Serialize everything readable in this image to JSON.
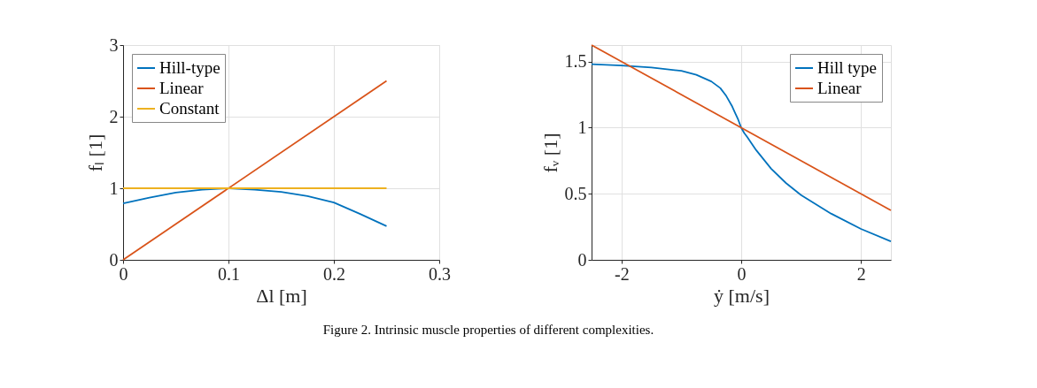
{
  "chart_data": [
    {
      "type": "line",
      "xlabel": "Δl [m]",
      "ylabel": "fₗ [1]",
      "xlim": [
        0,
        0.3
      ],
      "ylim": [
        0,
        3
      ],
      "xticks": [
        0,
        0.1,
        0.2,
        0.3
      ],
      "yticks": [
        0,
        1,
        2,
        3
      ],
      "grid": true,
      "legend": "top left",
      "line_style": "solid",
      "series": [
        {
          "name": "Hill-type",
          "color": "#0072bd",
          "x": [
            0,
            0.025,
            0.05,
            0.075,
            0.1,
            0.125,
            0.15,
            0.175,
            0.2,
            0.225,
            0.25
          ],
          "values": [
            0.79,
            0.87,
            0.94,
            0.98,
            1.0,
            0.98,
            0.95,
            0.89,
            0.8,
            0.64,
            0.47
          ]
        },
        {
          "name": "Linear",
          "color": "#d95319",
          "x": [
            0,
            0.25
          ],
          "values": [
            0,
            2.5
          ]
        },
        {
          "name": "Constant",
          "color": "#edb120",
          "x": [
            0,
            0.25
          ],
          "values": [
            1,
            1
          ]
        }
      ],
      "annotations": [
        "Figure 2. Intrinsic muscle properties of different complexities."
      ]
    },
    {
      "type": "line",
      "xlabel": "ẏ [m/s]",
      "ylabel": "fᵥ [1]",
      "xlim": [
        -2.5,
        2.5
      ],
      "ylim": [
        0,
        1.625
      ],
      "xticks": [
        -2,
        0,
        2
      ],
      "yticks": [
        0,
        0.5,
        1,
        1.5
      ],
      "grid": true,
      "legend": "top right",
      "line_style": "solid",
      "series": [
        {
          "name": "Hill type",
          "color": "#0072bd",
          "x": [
            -2.5,
            -2,
            -1.5,
            -1,
            -0.75,
            -0.5,
            -0.35,
            -0.25,
            -0.15,
            -0.1,
            -0.05,
            0,
            0.05,
            0.1,
            0.25,
            0.5,
            0.75,
            1,
            1.5,
            2,
            2.5
          ],
          "values": [
            1.48,
            1.47,
            1.455,
            1.43,
            1.4,
            1.35,
            1.3,
            1.24,
            1.16,
            1.11,
            1.06,
            1.0,
            0.96,
            0.93,
            0.83,
            0.69,
            0.58,
            0.49,
            0.35,
            0.234,
            0.14
          ]
        },
        {
          "name": "Linear",
          "color": "#d95319",
          "x": [
            -2.5,
            2.5
          ],
          "values": [
            1.625,
            0.375
          ]
        }
      ]
    }
  ]
}
